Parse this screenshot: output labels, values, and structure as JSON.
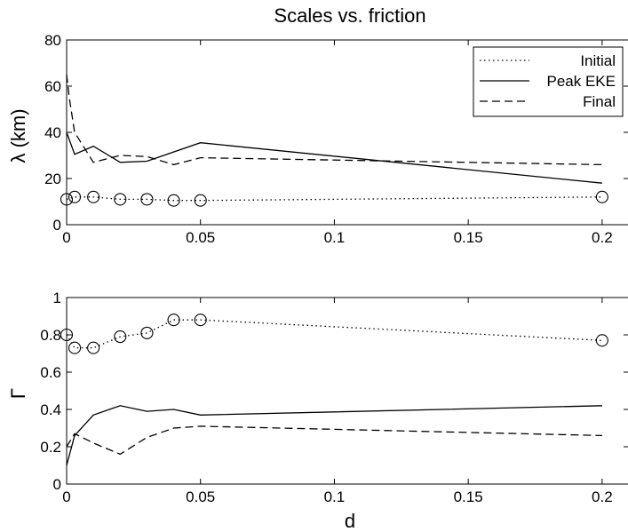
{
  "chart_data": [
    {
      "type": "line",
      "title": "Scales vs. friction",
      "xlabel": "",
      "ylabel": "λ (km)",
      "xlim": [
        0,
        0.21
      ],
      "ylim": [
        0,
        80
      ],
      "xticks": [
        0,
        0.05,
        0.1,
        0.15,
        0.2
      ],
      "xtick_labels": [
        "0",
        "0.05",
        "0.1",
        "0.15",
        "0.2"
      ],
      "yticks": [
        0,
        20,
        40,
        60,
        80
      ],
      "ytick_labels": [
        "0",
        "20",
        "40",
        "60",
        "80"
      ],
      "grid": false,
      "legend_position": "top-right",
      "series": [
        {
          "name": "Initial",
          "style": "dotted",
          "marker": "circle",
          "x": [
            0,
            0.003,
            0.01,
            0.02,
            0.03,
            0.04,
            0.05,
            0.2
          ],
          "y": [
            11,
            12,
            12,
            11,
            11,
            10.5,
            10.5,
            12
          ]
        },
        {
          "name": "Peak EKE",
          "style": "solid",
          "marker": "none",
          "x": [
            0,
            0.003,
            0.01,
            0.02,
            0.03,
            0.05,
            0.2
          ],
          "y": [
            40,
            30.5,
            34,
            27,
            27.5,
            35.5,
            18
          ]
        },
        {
          "name": "Final",
          "style": "dashed",
          "marker": "none",
          "x": [
            0,
            0.001,
            0.003,
            0.01,
            0.02,
            0.03,
            0.04,
            0.05,
            0.2
          ],
          "y": [
            65,
            55,
            40,
            27,
            30,
            29.5,
            26,
            29,
            26
          ]
        }
      ]
    },
    {
      "type": "line",
      "title": "",
      "xlabel": "d",
      "ylabel": "Γ",
      "xlim": [
        0,
        0.21
      ],
      "ylim": [
        0,
        1
      ],
      "xticks": [
        0,
        0.05,
        0.1,
        0.15,
        0.2
      ],
      "xtick_labels": [
        "0",
        "0.05",
        "0.1",
        "0.15",
        "0.2"
      ],
      "yticks": [
        0,
        0.2,
        0.4,
        0.6,
        0.8,
        1
      ],
      "ytick_labels": [
        "0",
        "0.2",
        "0.4",
        "0.6",
        "0.8",
        "1"
      ],
      "grid": false,
      "series": [
        {
          "style": "dotted",
          "marker": "circle",
          "x": [
            0,
            0.003,
            0.01,
            0.02,
            0.03,
            0.04,
            0.05,
            0.2
          ],
          "y": [
            0.8,
            0.73,
            0.73,
            0.79,
            0.81,
            0.88,
            0.88,
            0.77
          ]
        },
        {
          "style": "solid",
          "marker": "none",
          "x": [
            0,
            0.003,
            0.01,
            0.02,
            0.03,
            0.04,
            0.05,
            0.2
          ],
          "y": [
            0.1,
            0.26,
            0.37,
            0.42,
            0.39,
            0.4,
            0.37,
            0.42
          ]
        },
        {
          "style": "dashed",
          "marker": "none",
          "x": [
            0,
            0.003,
            0.01,
            0.02,
            0.03,
            0.04,
            0.05,
            0.2
          ],
          "y": [
            0.2,
            0.27,
            0.22,
            0.16,
            0.25,
            0.3,
            0.31,
            0.26
          ]
        }
      ]
    }
  ]
}
